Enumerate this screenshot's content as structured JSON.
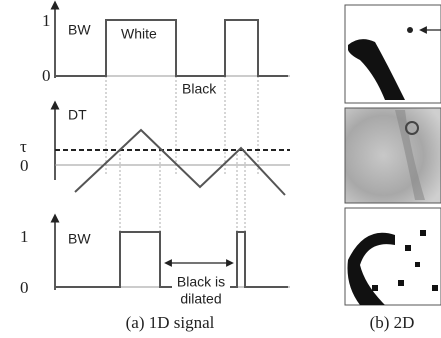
{
  "panels": [
    {
      "labels": [
        "1",
        "BW",
        "0"
      ],
      "annotations": [
        "White",
        "Black"
      ]
    },
    {
      "labels": [
        "DT",
        "τ",
        "0"
      ]
    },
    {
      "labels": [
        "1",
        "BW",
        "0"
      ],
      "annotations": [
        "Black is",
        "dilated"
      ]
    }
  ],
  "captions": [
    "(a) 1D signal",
    "(b) 2D"
  ]
}
